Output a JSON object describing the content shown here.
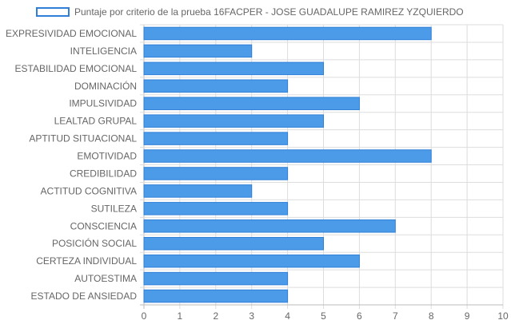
{
  "chart_data": {
    "type": "bar",
    "orientation": "horizontal",
    "categories": [
      "EXPRESIVIDAD EMOCIONAL",
      "INTELIGENCIA",
      "ESTABILIDAD EMOCIONAL",
      "DOMINACIÓN",
      "IMPULSIVIDAD",
      "LEALTAD GRUPAL",
      "APTITUD SITUACIONAL",
      "EMOTIVIDAD",
      "CREDIBILIDAD",
      "ACTITUD COGNITIVA",
      "SUTILEZA",
      "CONSCIENCIA",
      "POSICIÓN SOCIAL",
      "CERTEZA INDIVIDUAL",
      "AUTOESTIMA",
      "ESTADO DE ANSIEDAD"
    ],
    "series": [
      {
        "name": "Puntaje por criterio de la prueba 16FACPER - JOSE GUADALUPE RAMIREZ YZQUIERDO",
        "values": [
          8,
          3,
          5,
          4,
          6,
          5,
          4,
          8,
          4,
          3,
          4,
          7,
          5,
          6,
          4,
          4
        ]
      }
    ],
    "xlim": [
      0,
      10
    ],
    "x_ticks": [
      "0",
      "1",
      "2",
      "3",
      "4",
      "5",
      "6",
      "7",
      "8",
      "9",
      "10"
    ],
    "grid": true,
    "legend_position": "top-left"
  },
  "colors": {
    "bar_fill": "#4c9be8",
    "bar_border": "#2f7fd8",
    "grid": "#dddddd",
    "axis": "#bbbbbb",
    "label": "#666666"
  }
}
